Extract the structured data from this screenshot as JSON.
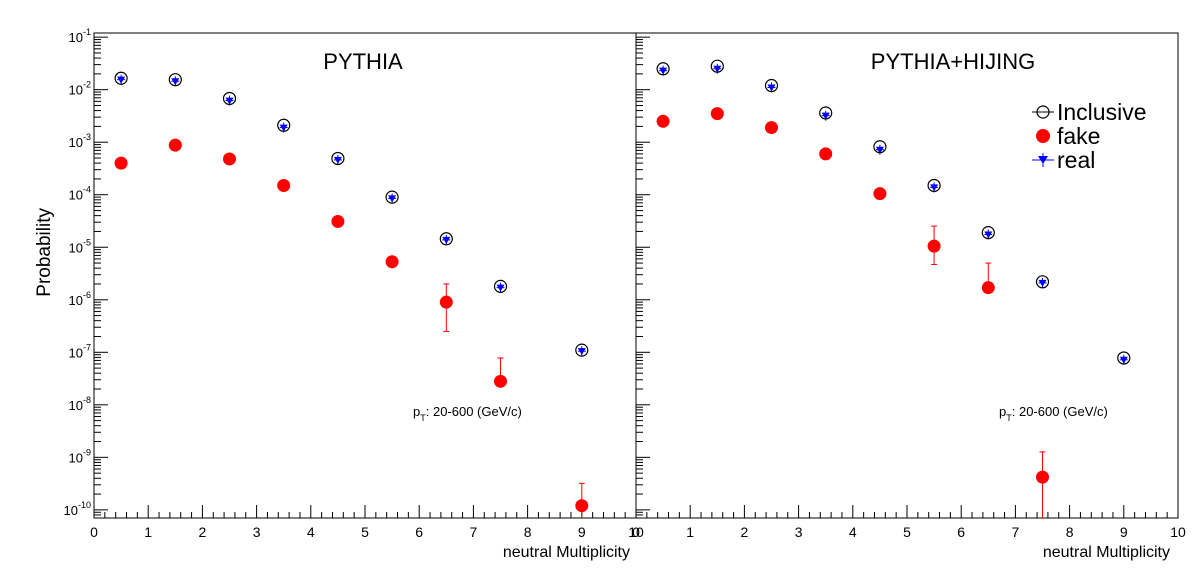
{
  "figure": {
    "ylabel": "Probability",
    "xlabel": "neutral Multiplicity",
    "annotation_p": "p",
    "annotation_sub": "T",
    "annotation_rest": ": 20-600 (GeV/c)"
  },
  "legend": {
    "items": [
      {
        "label": "Inclusive",
        "marker": "open-circle",
        "color": "#000000"
      },
      {
        "label": "fake",
        "marker": "filled-circle",
        "color": "#ff0000"
      },
      {
        "label": "real",
        "marker": "triangle-down",
        "color": "#0000ff"
      }
    ]
  },
  "chart_data": [
    {
      "type": "scatter",
      "title": "PYTHIA",
      "xlabel": "neutral Multiplicity",
      "ylabel": "Probability",
      "xlim": [
        0,
        10
      ],
      "ylim": [
        7e-11,
        0.12
      ],
      "yscale": "log",
      "xticks": [
        "0",
        "1",
        "2",
        "3",
        "4",
        "5",
        "6",
        "7",
        "8",
        "9",
        "10"
      ],
      "yticks": [
        "10^-10",
        "10^-9",
        "10^-8",
        "10^-7",
        "10^-6",
        "10^-5",
        "10^-4",
        "10^-3",
        "10^-2",
        "10^-1"
      ],
      "series": [
        {
          "name": "Inclusive",
          "color": "#000000",
          "x": [
            0.5,
            1.5,
            2.5,
            3.5,
            4.5,
            5.5,
            6.5,
            7.5,
            9
          ],
          "y": [
            0.0165,
            0.0155,
            0.0068,
            0.0021,
            0.00049,
            9e-05,
            1.45e-05,
            1.8e-06,
            1.1e-07
          ]
        },
        {
          "name": "fake",
          "color": "#ff0000",
          "x": [
            0.5,
            1.5,
            2.5,
            3.5,
            4.5,
            5.5,
            6.5,
            7.5,
            9
          ],
          "y": [
            0.0004,
            0.00088,
            0.00048,
            0.00015,
            3.1e-05,
            5.3e-06,
            9e-07,
            2.8e-08,
            1.2e-10
          ],
          "err_low": [
            0,
            0,
            0,
            0,
            0,
            0,
            6.5e-07,
            4.5e-09,
            8e-11
          ],
          "err_high": [
            0,
            0,
            0,
            0,
            0,
            0,
            1.1e-06,
            5e-08,
            2e-10
          ]
        },
        {
          "name": "real",
          "color": "#0000ff",
          "x": [
            0.5,
            1.5,
            2.5,
            3.5,
            4.5,
            5.5,
            6.5,
            7.5,
            9
          ],
          "y": [
            0.0155,
            0.0145,
            0.0062,
            0.0019,
            0.00046,
            8.5e-05,
            1.38e-05,
            1.7e-06,
            1.05e-07
          ]
        }
      ]
    },
    {
      "type": "scatter",
      "title": "PYTHIA+HIJING",
      "xlabel": "neutral Multiplicity",
      "ylabel": "Probability",
      "xlim": [
        0,
        10
      ],
      "ylim": [
        7e-11,
        0.12
      ],
      "yscale": "log",
      "xticks": [
        "0",
        "1",
        "2",
        "3",
        "4",
        "5",
        "6",
        "7",
        "8",
        "9",
        "10"
      ],
      "series": [
        {
          "name": "Inclusive",
          "color": "#000000",
          "x": [
            0.5,
            1.5,
            2.5,
            3.5,
            4.5,
            5.5,
            6.5,
            7.5,
            9
          ],
          "y": [
            0.025,
            0.028,
            0.012,
            0.0036,
            0.00082,
            0.00015,
            1.9e-05,
            2.2e-06,
            7.8e-08
          ]
        },
        {
          "name": "fake",
          "color": "#ff0000",
          "x": [
            0.5,
            1.5,
            2.5,
            3.5,
            4.5,
            5.5,
            6.5,
            7.5
          ],
          "y": [
            0.0025,
            0.0035,
            0.0019,
            0.0006,
            0.000105,
            1.05e-05,
            1.7e-06,
            4.2e-10
          ],
          "err_low": [
            0,
            0,
            0,
            0,
            0,
            5.8e-06,
            3e-08,
            4.2e-10
          ],
          "err_high": [
            0,
            0,
            0,
            0,
            0,
            1.48e-05,
            3.3e-06,
            8.5e-10
          ]
        },
        {
          "name": "real",
          "color": "#0000ff",
          "x": [
            0.5,
            1.5,
            2.5,
            3.5,
            4.5,
            5.5,
            6.5,
            7.5,
            9
          ],
          "y": [
            0.023,
            0.025,
            0.011,
            0.0032,
            0.00072,
            0.000138,
            1.75e-05,
            2.1e-06,
            7.2e-08
          ]
        }
      ]
    }
  ]
}
